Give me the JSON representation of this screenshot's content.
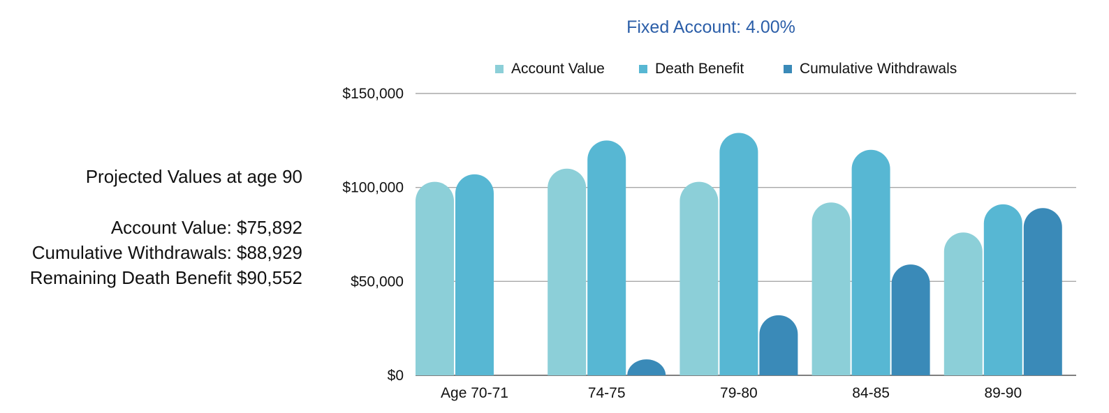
{
  "summary": {
    "heading": "Projected Values at age 90",
    "lines": [
      "Account Value: $75,892",
      "Cumulative Withdrawals: $88,929",
      "Remaining Death Benefit $90,552"
    ]
  },
  "chart_data": {
    "type": "bar",
    "title": "Fixed Account: 4.00%",
    "categories": [
      "Age 70-71",
      "74-75",
      "79-80",
      "84-85",
      "89-90"
    ],
    "series": [
      {
        "name": "Account Value",
        "color": "#8ccfd8",
        "values": [
          103000,
          110000,
          103000,
          92000,
          76000
        ]
      },
      {
        "name": "Death Benefit",
        "color": "#57b7d3",
        "values": [
          107000,
          125000,
          129000,
          120000,
          91000
        ]
      },
      {
        "name": "Cumulative Withdrawals",
        "color": "#3a8ab8",
        "values": [
          0,
          8500,
          32000,
          59000,
          89000
        ]
      }
    ],
    "y_ticks": [
      {
        "value": 0,
        "label": "$0"
      },
      {
        "value": 50000,
        "label": "$50,000"
      },
      {
        "value": 100000,
        "label": "$100,000"
      },
      {
        "value": 150000,
        "label": "$150,000"
      }
    ],
    "ylim": [
      0,
      150000
    ],
    "grid": true,
    "legend_position": "top",
    "xlabel": "",
    "ylabel": ""
  }
}
